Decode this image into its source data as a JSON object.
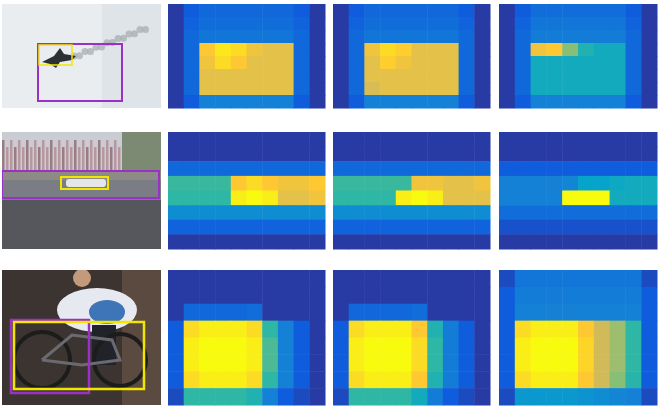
{
  "chart_data": [
    {
      "type": "heatmap",
      "tick_labels": false,
      "cells": [
        [
          0.05,
          0.15,
          0.2,
          0.2,
          0.2,
          0.2,
          0.2,
          0.2,
          0.15,
          0.05
        ],
        [
          0.05,
          0.18,
          0.22,
          0.22,
          0.22,
          0.22,
          0.22,
          0.22,
          0.18,
          0.05
        ],
        [
          0.05,
          0.2,
          0.25,
          0.25,
          0.25,
          0.25,
          0.25,
          0.25,
          0.2,
          0.05
        ],
        [
          0.05,
          0.2,
          0.92,
          0.97,
          0.95,
          0.9,
          0.88,
          0.88,
          0.2,
          0.05
        ],
        [
          0.05,
          0.2,
          0.9,
          0.95,
          0.92,
          0.88,
          0.88,
          0.88,
          0.2,
          0.05
        ],
        [
          0.05,
          0.2,
          0.88,
          0.88,
          0.88,
          0.88,
          0.88,
          0.88,
          0.2,
          0.05
        ],
        [
          0.05,
          0.2,
          0.88,
          0.88,
          0.88,
          0.88,
          0.88,
          0.88,
          0.2,
          0.05
        ],
        [
          0.05,
          0.15,
          0.3,
          0.3,
          0.3,
          0.3,
          0.3,
          0.3,
          0.15,
          0.05
        ]
      ]
    },
    {
      "type": "heatmap",
      "tick_labels": false,
      "cells": [
        [
          0.05,
          0.15,
          0.2,
          0.2,
          0.2,
          0.2,
          0.2,
          0.2,
          0.15,
          0.05
        ],
        [
          0.05,
          0.18,
          0.22,
          0.22,
          0.22,
          0.22,
          0.22,
          0.22,
          0.18,
          0.05
        ],
        [
          0.05,
          0.2,
          0.25,
          0.25,
          0.25,
          0.25,
          0.25,
          0.25,
          0.2,
          0.05
        ],
        [
          0.05,
          0.2,
          0.9,
          0.95,
          0.93,
          0.88,
          0.88,
          0.88,
          0.2,
          0.05
        ],
        [
          0.05,
          0.2,
          0.88,
          0.93,
          0.9,
          0.88,
          0.88,
          0.88,
          0.2,
          0.05
        ],
        [
          0.05,
          0.2,
          0.88,
          0.88,
          0.88,
          0.88,
          0.88,
          0.88,
          0.2,
          0.05
        ],
        [
          0.05,
          0.2,
          0.86,
          0.88,
          0.88,
          0.88,
          0.88,
          0.88,
          0.2,
          0.05
        ],
        [
          0.05,
          0.15,
          0.3,
          0.3,
          0.3,
          0.3,
          0.3,
          0.3,
          0.15,
          0.05
        ]
      ]
    },
    {
      "type": "heatmap",
      "tick_labels": false,
      "cells": [
        [
          0.05,
          0.15,
          0.22,
          0.22,
          0.22,
          0.22,
          0.22,
          0.22,
          0.15,
          0.05
        ],
        [
          0.05,
          0.18,
          0.25,
          0.25,
          0.25,
          0.25,
          0.25,
          0.25,
          0.18,
          0.05
        ],
        [
          0.05,
          0.2,
          0.28,
          0.28,
          0.28,
          0.28,
          0.28,
          0.28,
          0.2,
          0.05
        ],
        [
          0.05,
          0.2,
          0.9,
          0.92,
          0.75,
          0.55,
          0.5,
          0.5,
          0.2,
          0.05
        ],
        [
          0.05,
          0.2,
          0.5,
          0.5,
          0.5,
          0.5,
          0.5,
          0.5,
          0.2,
          0.05
        ],
        [
          0.05,
          0.2,
          0.5,
          0.5,
          0.5,
          0.5,
          0.5,
          0.5,
          0.2,
          0.05
        ],
        [
          0.05,
          0.2,
          0.5,
          0.5,
          0.5,
          0.5,
          0.5,
          0.5,
          0.2,
          0.05
        ],
        [
          0.05,
          0.15,
          0.3,
          0.3,
          0.3,
          0.3,
          0.3,
          0.3,
          0.15,
          0.05
        ]
      ]
    },
    {
      "type": "heatmap",
      "tick_labels": false,
      "cells": [
        [
          0.05,
          0.05,
          0.05,
          0.05,
          0.05,
          0.05,
          0.05,
          0.05,
          0.05,
          0.05
        ],
        [
          0.05,
          0.05,
          0.05,
          0.05,
          0.05,
          0.05,
          0.05,
          0.05,
          0.05,
          0.05
        ],
        [
          0.2,
          0.2,
          0.2,
          0.2,
          0.2,
          0.2,
          0.2,
          0.2,
          0.2,
          0.2
        ],
        [
          0.62,
          0.62,
          0.62,
          0.62,
          0.92,
          0.95,
          0.92,
          0.9,
          0.9,
          0.92
        ],
        [
          0.6,
          0.6,
          0.6,
          0.6,
          0.98,
          1.0,
          0.98,
          0.88,
          0.88,
          0.9
        ],
        [
          0.35,
          0.35,
          0.35,
          0.35,
          0.35,
          0.35,
          0.35,
          0.35,
          0.35,
          0.35
        ],
        [
          0.18,
          0.18,
          0.18,
          0.18,
          0.18,
          0.18,
          0.18,
          0.18,
          0.18,
          0.18
        ],
        [
          0.05,
          0.05,
          0.05,
          0.05,
          0.05,
          0.05,
          0.05,
          0.05,
          0.05,
          0.05
        ]
      ]
    },
    {
      "type": "heatmap",
      "tick_labels": false,
      "cells": [
        [
          0.05,
          0.05,
          0.05,
          0.05,
          0.05,
          0.05,
          0.05,
          0.05,
          0.05,
          0.05
        ],
        [
          0.05,
          0.05,
          0.05,
          0.05,
          0.05,
          0.05,
          0.05,
          0.05,
          0.05,
          0.05
        ],
        [
          0.2,
          0.2,
          0.2,
          0.2,
          0.2,
          0.2,
          0.2,
          0.2,
          0.2,
          0.2
        ],
        [
          0.62,
          0.62,
          0.62,
          0.62,
          0.62,
          0.9,
          0.9,
          0.88,
          0.88,
          0.9
        ],
        [
          0.6,
          0.6,
          0.6,
          0.6,
          0.98,
          1.0,
          0.98,
          0.88,
          0.88,
          0.88
        ],
        [
          0.35,
          0.35,
          0.35,
          0.35,
          0.35,
          0.35,
          0.35,
          0.35,
          0.35,
          0.35
        ],
        [
          0.18,
          0.18,
          0.18,
          0.18,
          0.18,
          0.18,
          0.18,
          0.18,
          0.18,
          0.18
        ],
        [
          0.05,
          0.05,
          0.05,
          0.05,
          0.05,
          0.05,
          0.05,
          0.05,
          0.05,
          0.05
        ]
      ]
    },
    {
      "type": "heatmap",
      "tick_labels": false,
      "cells": [
        [
          0.05,
          0.05,
          0.05,
          0.05,
          0.05,
          0.05,
          0.05,
          0.05,
          0.05,
          0.05
        ],
        [
          0.05,
          0.05,
          0.05,
          0.05,
          0.05,
          0.05,
          0.05,
          0.05,
          0.05,
          0.05
        ],
        [
          0.15,
          0.15,
          0.15,
          0.15,
          0.15,
          0.15,
          0.15,
          0.15,
          0.15,
          0.15
        ],
        [
          0.3,
          0.3,
          0.3,
          0.3,
          0.32,
          0.45,
          0.45,
          0.48,
          0.5,
          0.5
        ],
        [
          0.3,
          0.3,
          0.3,
          0.3,
          1.0,
          1.0,
          1.0,
          0.5,
          0.5,
          0.5
        ],
        [
          0.22,
          0.22,
          0.22,
          0.22,
          0.22,
          0.22,
          0.22,
          0.22,
          0.22,
          0.22
        ],
        [
          0.12,
          0.12,
          0.12,
          0.12,
          0.12,
          0.12,
          0.12,
          0.12,
          0.12,
          0.12
        ],
        [
          0.05,
          0.05,
          0.05,
          0.05,
          0.05,
          0.05,
          0.05,
          0.05,
          0.05,
          0.05
        ]
      ]
    },
    {
      "type": "heatmap",
      "tick_labels": false,
      "cells": [
        [
          0.05,
          0.05,
          0.05,
          0.05,
          0.05,
          0.05,
          0.05,
          0.05,
          0.05,
          0.05
        ],
        [
          0.05,
          0.05,
          0.05,
          0.05,
          0.05,
          0.05,
          0.05,
          0.05,
          0.05,
          0.05
        ],
        [
          0.05,
          0.2,
          0.2,
          0.2,
          0.2,
          0.22,
          0.05,
          0.05,
          0.05,
          0.05
        ],
        [
          0.15,
          0.95,
          0.98,
          0.98,
          0.98,
          0.95,
          0.6,
          0.3,
          0.15,
          0.05
        ],
        [
          0.15,
          0.98,
          1.0,
          1.0,
          1.0,
          0.98,
          0.65,
          0.3,
          0.15,
          0.05
        ],
        [
          0.15,
          0.98,
          1.0,
          1.0,
          1.0,
          0.98,
          0.65,
          0.3,
          0.15,
          0.05
        ],
        [
          0.15,
          0.95,
          0.98,
          0.98,
          0.98,
          0.95,
          0.6,
          0.3,
          0.15,
          0.05
        ],
        [
          0.1,
          0.6,
          0.6,
          0.6,
          0.6,
          0.55,
          0.3,
          0.15,
          0.1,
          0.05
        ]
      ]
    },
    {
      "type": "heatmap",
      "tick_labels": false,
      "cells": [
        [
          0.05,
          0.05,
          0.05,
          0.05,
          0.05,
          0.05,
          0.05,
          0.05,
          0.05,
          0.05
        ],
        [
          0.05,
          0.05,
          0.05,
          0.05,
          0.05,
          0.05,
          0.05,
          0.05,
          0.05,
          0.05
        ],
        [
          0.05,
          0.2,
          0.2,
          0.2,
          0.2,
          0.22,
          0.05,
          0.05,
          0.05,
          0.05
        ],
        [
          0.15,
          0.95,
          0.98,
          0.98,
          0.98,
          0.92,
          0.55,
          0.28,
          0.15,
          0.05
        ],
        [
          0.15,
          0.98,
          1.0,
          1.0,
          1.0,
          0.95,
          0.6,
          0.28,
          0.15,
          0.05
        ],
        [
          0.15,
          0.98,
          1.0,
          1.0,
          1.0,
          0.95,
          0.6,
          0.28,
          0.15,
          0.05
        ],
        [
          0.15,
          0.95,
          0.98,
          0.98,
          0.98,
          0.92,
          0.55,
          0.28,
          0.15,
          0.05
        ],
        [
          0.1,
          0.6,
          0.6,
          0.6,
          0.6,
          0.5,
          0.28,
          0.15,
          0.1,
          0.05
        ]
      ]
    },
    {
      "type": "heatmap",
      "tick_labels": false,
      "cells": [
        [
          0.1,
          0.25,
          0.25,
          0.25,
          0.25,
          0.25,
          0.25,
          0.25,
          0.25,
          0.1
        ],
        [
          0.15,
          0.28,
          0.28,
          0.28,
          0.28,
          0.28,
          0.28,
          0.28,
          0.28,
          0.15
        ],
        [
          0.15,
          0.3,
          0.3,
          0.3,
          0.3,
          0.3,
          0.3,
          0.3,
          0.3,
          0.15
        ],
        [
          0.15,
          0.95,
          0.98,
          0.98,
          0.98,
          0.92,
          0.85,
          0.78,
          0.6,
          0.15
        ],
        [
          0.15,
          0.98,
          1.0,
          1.0,
          1.0,
          0.94,
          0.85,
          0.78,
          0.6,
          0.15
        ],
        [
          0.15,
          0.98,
          1.0,
          1.0,
          1.0,
          0.94,
          0.85,
          0.78,
          0.6,
          0.15
        ],
        [
          0.15,
          0.95,
          0.98,
          0.98,
          0.98,
          0.92,
          0.85,
          0.75,
          0.58,
          0.15
        ],
        [
          0.1,
          0.4,
          0.4,
          0.4,
          0.4,
          0.38,
          0.35,
          0.32,
          0.3,
          0.1
        ]
      ]
    }
  ]
}
